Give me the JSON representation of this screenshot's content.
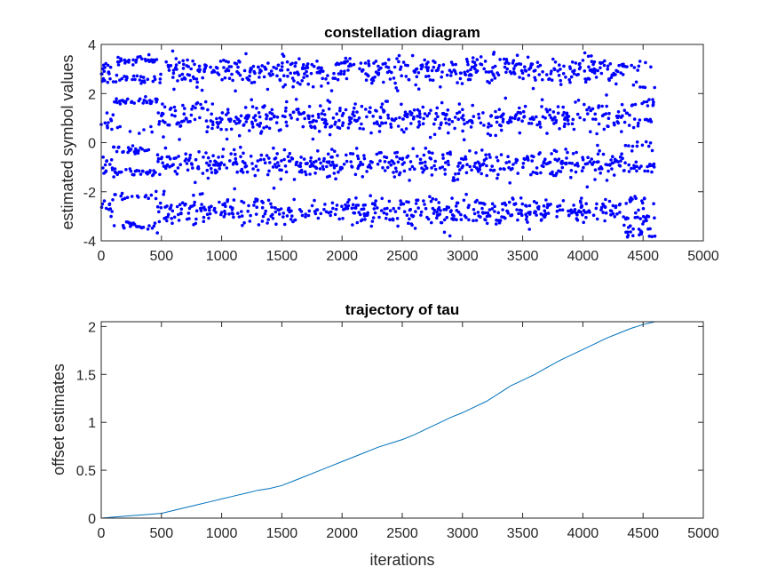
{
  "chart_data": [
    {
      "type": "scatter",
      "title": "constellation diagram",
      "xlabel": "",
      "ylabel": "estimated symbol values",
      "xlim": [
        0,
        5000
      ],
      "ylim": [
        -4,
        4
      ],
      "xticks": [
        0,
        500,
        1000,
        1500,
        2000,
        2500,
        3000,
        3500,
        4000,
        4500,
        5000
      ],
      "yticks": [
        -4,
        -2,
        0,
        2,
        4
      ],
      "grid": false,
      "marker_color": "#0000ff",
      "n_points": 4600,
      "series": [
        {
          "levels": [
            -3,
            -1,
            1,
            3
          ],
          "segments": [
            {
              "x_range": [
                0,
                100
              ],
              "centers": [
                -2.6,
                -0.9,
                1.0,
                2.9
              ],
              "spread": 0.25
            },
            {
              "x_range": [
                100,
                470
              ],
              "centers": [
                -3.4,
                -2.2,
                -1.2,
                -0.3,
                0.5,
                1.7,
                2.6,
                3.35
              ],
              "spread": 0.08
            },
            {
              "x_range": [
                470,
                4350
              ],
              "centers": [
                -2.8,
                -0.9,
                1.0,
                2.9
              ],
              "spread": 0.3
            },
            {
              "x_range": [
                4350,
                4600
              ],
              "centers": [
                -3.6,
                -3.0,
                -2.4,
                -1.0,
                -0.1,
                0.9,
                1.6,
                2.3,
                3.1
              ],
              "spread": 0.12
            }
          ]
        }
      ]
    },
    {
      "type": "line",
      "title": "trajectory of tau",
      "xlabel": "iterations",
      "ylabel": "offset estimates",
      "xlim": [
        0,
        5000
      ],
      "ylim": [
        0,
        2.05
      ],
      "xticks": [
        0,
        500,
        1000,
        1500,
        2000,
        2500,
        3000,
        3500,
        4000,
        4500,
        5000
      ],
      "yticks": [
        0,
        0.5,
        1,
        1.5,
        2
      ],
      "grid": false,
      "line_color": "#0072bd",
      "series": [
        {
          "x": [
            0,
            100,
            200,
            300,
            400,
            500,
            600,
            700,
            800,
            900,
            1000,
            1100,
            1200,
            1300,
            1400,
            1500,
            1600,
            1700,
            1800,
            1900,
            2000,
            2100,
            2200,
            2300,
            2400,
            2500,
            2600,
            2700,
            2800,
            2900,
            3000,
            3100,
            3200,
            3300,
            3400,
            3500,
            3600,
            3700,
            3800,
            3900,
            4000,
            4100,
            4200,
            4300,
            4400,
            4500,
            4600
          ],
          "y": [
            0,
            0.01,
            0.02,
            0.03,
            0.04,
            0.05,
            0.08,
            0.11,
            0.14,
            0.17,
            0.2,
            0.23,
            0.26,
            0.29,
            0.31,
            0.34,
            0.39,
            0.44,
            0.49,
            0.54,
            0.59,
            0.64,
            0.69,
            0.74,
            0.78,
            0.82,
            0.87,
            0.93,
            0.99,
            1.05,
            1.1,
            1.16,
            1.22,
            1.3,
            1.38,
            1.44,
            1.5,
            1.57,
            1.64,
            1.7,
            1.76,
            1.82,
            1.88,
            1.93,
            1.98,
            2.02,
            2.05
          ]
        }
      ]
    }
  ]
}
